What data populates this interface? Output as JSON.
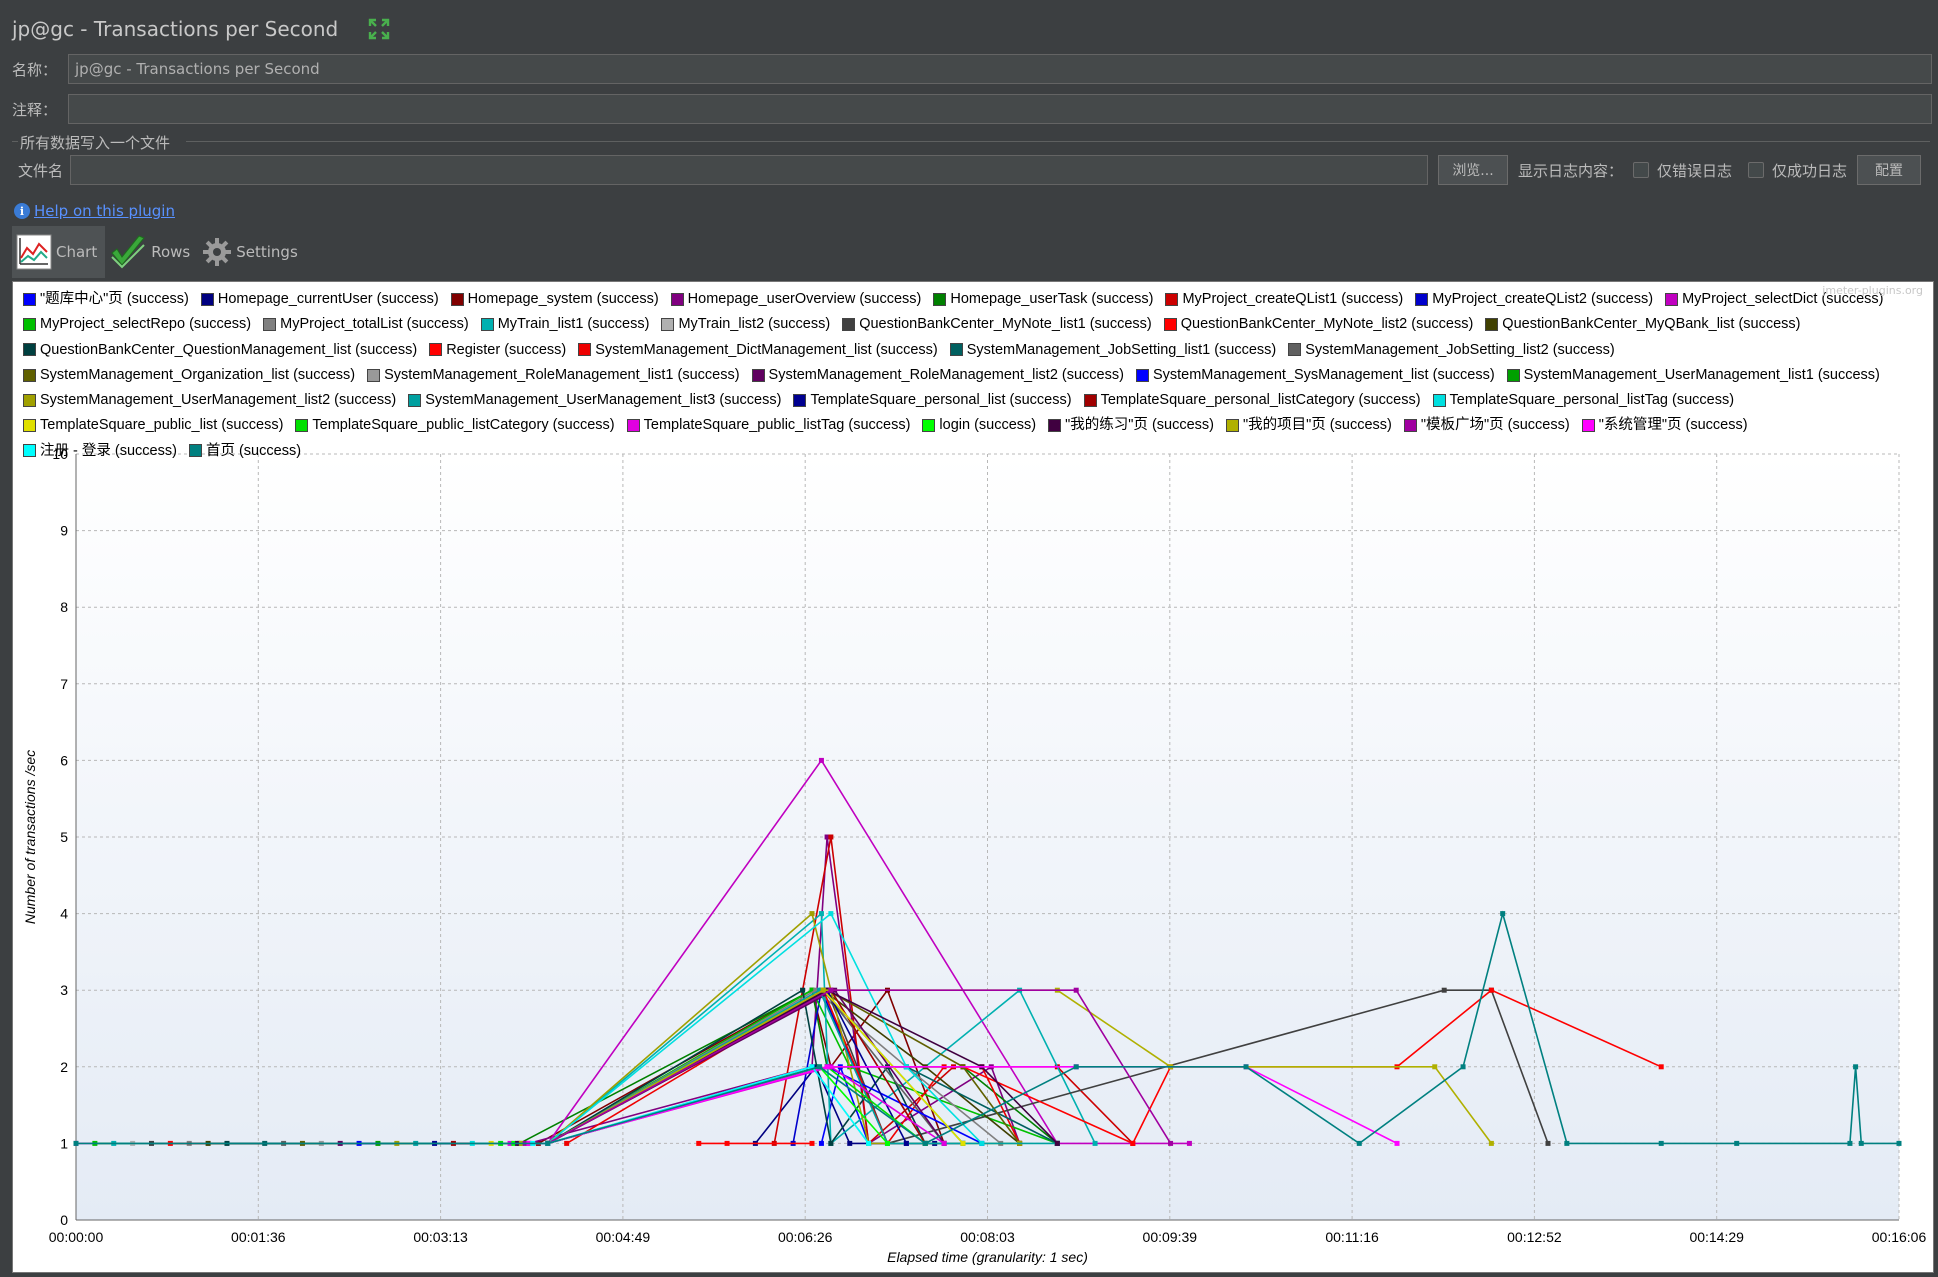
{
  "window": {
    "title": "jp@gc - Transactions per Second"
  },
  "form": {
    "name_label": "名称：",
    "name_value": "jp@gc - Transactions per Second",
    "comment_label": "注释：",
    "comment_value": "",
    "file_group_title": "所有数据写入一个文件",
    "filename_label": "文件名",
    "filename_value": "",
    "browse_button": "浏览...",
    "log_display_label": "显示日志内容：",
    "errors_only_label": "仅错误日志",
    "success_only_label": "仅成功日志",
    "configure_button": "配置"
  },
  "help_link": "Help on this plugin",
  "tabs": [
    {
      "label": "Chart"
    },
    {
      "label": "Rows"
    },
    {
      "label": "Settings"
    }
  ],
  "watermark": "jmeter-plugins.org",
  "icons": {
    "expand": "expand-icon",
    "info": "info-icon",
    "chart_tab": "line-chart-icon",
    "rows_tab": "checkmark-icon",
    "settings_tab": "gear-icon"
  },
  "chart_data": {
    "type": "line",
    "xlabel": "Elapsed time (granularity: 1 sec)",
    "ylabel": "Number of transactions /sec",
    "ylim": [
      0,
      10
    ],
    "xlim_seconds": [
      0,
      966
    ],
    "x_tick_labels": [
      "00:00:00",
      "00:01:36",
      "00:03:13",
      "00:04:49",
      "00:06:26",
      "00:08:03",
      "00:09:39",
      "00:11:16",
      "00:12:52",
      "00:14:29",
      "00:16:06"
    ],
    "y_ticks": [
      0,
      1,
      2,
      3,
      4,
      5,
      6,
      7,
      8,
      9,
      10
    ],
    "grid": true,
    "legend_position": "top",
    "series": [
      {
        "name": "\"题库中心\"页 (success)",
        "color": "#0000ff",
        "points": [
          [
            395,
            1
          ],
          [
            405,
            2
          ],
          [
            420,
            1
          ],
          [
            470,
            1
          ]
        ]
      },
      {
        "name": "Homepage_currentUser (success)",
        "color": "#000080",
        "points": [
          [
            360,
            1
          ],
          [
            392,
            2
          ],
          [
            410,
            1
          ],
          [
            440,
            1
          ],
          [
            455,
            1
          ]
        ]
      },
      {
        "name": "Homepage_system (success)",
        "color": "#800000",
        "points": [
          [
            245,
            1
          ],
          [
            390,
            3
          ],
          [
            400,
            2
          ],
          [
            430,
            3
          ],
          [
            460,
            1
          ]
        ]
      },
      {
        "name": "Homepage_userOverview (success)",
        "color": "#800080",
        "points": [
          [
            240,
            1
          ],
          [
            390,
            2
          ],
          [
            398,
            5
          ],
          [
            420,
            1
          ],
          [
            485,
            2
          ],
          [
            500,
            1
          ]
        ]
      },
      {
        "name": "Homepage_userTask (success)",
        "color": "#008000",
        "points": [
          [
            235,
            1
          ],
          [
            390,
            3
          ],
          [
            398,
            2
          ],
          [
            470,
            2
          ],
          [
            520,
            1
          ]
        ]
      },
      {
        "name": "MyProject_createQList1 (success)",
        "color": "#cc0000",
        "points": [
          [
            370,
            1
          ],
          [
            400,
            5
          ],
          [
            420,
            1
          ],
          [
            465,
            2
          ],
          [
            520,
            2
          ],
          [
            560,
            1
          ]
        ]
      },
      {
        "name": "MyProject_createQList2 (success)",
        "color": "#0000cc",
        "points": [
          [
            380,
            1
          ],
          [
            395,
            3
          ],
          [
            430,
            1
          ],
          [
            470,
            1
          ]
        ]
      },
      {
        "name": "MyProject_selectDict (success)",
        "color": "#c000c0",
        "points": [
          [
            0,
            1
          ],
          [
            250,
            1
          ],
          [
            395,
            6
          ],
          [
            520,
            1
          ],
          [
            590,
            1
          ]
        ]
      },
      {
        "name": "MyProject_selectRepo (success)",
        "color": "#00c000",
        "points": [
          [
            10,
            1
          ],
          [
            250,
            1
          ],
          [
            390,
            3
          ],
          [
            410,
            2
          ],
          [
            520,
            1
          ]
        ]
      },
      {
        "name": "MyProject_totalList (success)",
        "color": "#808080",
        "points": [
          [
            60,
            1
          ],
          [
            250,
            1
          ],
          [
            392,
            3
          ],
          [
            440,
            2
          ],
          [
            490,
            1
          ]
        ]
      },
      {
        "name": "MyTrain_list1 (success)",
        "color": "#00b0b0",
        "points": [
          [
            20,
            1
          ],
          [
            250,
            1
          ],
          [
            395,
            4
          ],
          [
            400,
            1
          ],
          [
            500,
            3
          ],
          [
            540,
            1
          ]
        ]
      },
      {
        "name": "MyTrain_list2 (success)",
        "color": "#b0b0b0",
        "points": [
          [
            30,
            1
          ],
          [
            250,
            1
          ],
          [
            390,
            2
          ],
          [
            420,
            1
          ]
        ]
      },
      {
        "name": "QuestionBankCenter_MyNote_list1 (success)",
        "color": "#404040",
        "points": [
          [
            40,
            1
          ],
          [
            250,
            1
          ],
          [
            398,
            3
          ],
          [
            430,
            1
          ],
          [
            725,
            3
          ],
          [
            750,
            3
          ],
          [
            780,
            1
          ]
        ]
      },
      {
        "name": "QuestionBankCenter_MyNote_list2 (success)",
        "color": "#ff0000",
        "points": [
          [
            50,
            1
          ],
          [
            250,
            1
          ],
          [
            398,
            2
          ],
          [
            470,
            2
          ],
          [
            560,
            1
          ],
          [
            580,
            2
          ],
          [
            700,
            2
          ],
          [
            750,
            3
          ],
          [
            840,
            2
          ]
        ]
      },
      {
        "name": "QuestionBankCenter_MyQBank_list (success)",
        "color": "#404000",
        "points": [
          [
            70,
            1
          ],
          [
            250,
            1
          ],
          [
            396,
            3
          ],
          [
            450,
            2
          ],
          [
            500,
            1
          ]
        ]
      },
      {
        "name": "QuestionBankCenter_QuestionManagement_list (success)",
        "color": "#004040",
        "points": [
          [
            80,
            1
          ],
          [
            250,
            1
          ],
          [
            385,
            3
          ],
          [
            400,
            1
          ],
          [
            430,
            2
          ],
          [
            450,
            1
          ]
        ]
      },
      {
        "name": "Register (success)",
        "color": "#ff0000",
        "points": [
          [
            330,
            1
          ],
          [
            345,
            1
          ],
          [
            390,
            1
          ]
        ]
      },
      {
        "name": "SystemManagement_DictManagement_list (success)",
        "color": "#ee0000",
        "points": [
          [
            260,
            1
          ],
          [
            396,
            3
          ],
          [
            430,
            1
          ],
          [
            460,
            2
          ],
          [
            480,
            2
          ],
          [
            500,
            1
          ]
        ]
      },
      {
        "name": "SystemManagement_JobSetting_list1 (success)",
        "color": "#006060",
        "points": [
          [
            100,
            1
          ],
          [
            250,
            1
          ],
          [
            398,
            2
          ],
          [
            440,
            2
          ],
          [
            520,
            1
          ]
        ]
      },
      {
        "name": "SystemManagement_JobSetting_list2 (success)",
        "color": "#606060",
        "points": [
          [
            110,
            1
          ],
          [
            250,
            1
          ],
          [
            396,
            3
          ],
          [
            460,
            1
          ]
        ]
      },
      {
        "name": "SystemManagement_Organization_list (success)",
        "color": "#606000",
        "points": [
          [
            120,
            1
          ],
          [
            250,
            1
          ],
          [
            398,
            3
          ],
          [
            470,
            2
          ],
          [
            500,
            1
          ]
        ]
      },
      {
        "name": "SystemManagement_RoleManagement_list1 (success)",
        "color": "#999999",
        "points": [
          [
            130,
            1
          ],
          [
            250,
            1
          ],
          [
            400,
            3
          ],
          [
            450,
            1
          ]
        ]
      },
      {
        "name": "SystemManagement_RoleManagement_list2 (success)",
        "color": "#600060",
        "points": [
          [
            140,
            1
          ],
          [
            250,
            1
          ],
          [
            402,
            3
          ],
          [
            460,
            1
          ]
        ]
      },
      {
        "name": "SystemManagement_SysManagement_list (success)",
        "color": "#0000ff",
        "points": [
          [
            150,
            1
          ],
          [
            250,
            1
          ],
          [
            398,
            2
          ],
          [
            480,
            1
          ]
        ]
      },
      {
        "name": "SystemManagement_UserManagement_list1 (success)",
        "color": "#00a000",
        "points": [
          [
            160,
            1
          ],
          [
            250,
            1
          ],
          [
            396,
            3
          ],
          [
            470,
            1
          ]
        ]
      },
      {
        "name": "SystemManagement_UserManagement_list2 (success)",
        "color": "#a0a000",
        "points": [
          [
            170,
            1
          ],
          [
            250,
            1
          ],
          [
            390,
            4
          ],
          [
            420,
            1
          ],
          [
            500,
            1
          ]
        ]
      },
      {
        "name": "SystemManagement_UserManagement_list3 (success)",
        "color": "#00a0a0",
        "points": [
          [
            180,
            1
          ],
          [
            250,
            1
          ],
          [
            394,
            3
          ],
          [
            430,
            1
          ],
          [
            520,
            1
          ]
        ]
      },
      {
        "name": "TemplateSquare_personal_list (success)",
        "color": "#000090",
        "points": [
          [
            190,
            1
          ],
          [
            250,
            1
          ],
          [
            398,
            3
          ],
          [
            440,
            1
          ]
        ]
      },
      {
        "name": "TemplateSquare_personal_listCategory (success)",
        "color": "#a00000",
        "points": [
          [
            200,
            1
          ],
          [
            250,
            1
          ],
          [
            400,
            3
          ],
          [
            450,
            1
          ]
        ]
      },
      {
        "name": "TemplateSquare_personal_listTag (success)",
        "color": "#00e0e0",
        "points": [
          [
            210,
            1
          ],
          [
            250,
            1
          ],
          [
            400,
            4
          ],
          [
            440,
            2
          ],
          [
            480,
            1
          ]
        ]
      },
      {
        "name": "TemplateSquare_public_list (success)",
        "color": "#e0e000",
        "points": [
          [
            220,
            1
          ],
          [
            250,
            1
          ],
          [
            396,
            3
          ],
          [
            470,
            1
          ]
        ]
      },
      {
        "name": "TemplateSquare_public_listCategory (success)",
        "color": "#00e000",
        "points": [
          [
            225,
            1
          ],
          [
            250,
            1
          ],
          [
            398,
            2
          ],
          [
            450,
            1
          ]
        ]
      },
      {
        "name": "TemplateSquare_public_listTag (success)",
        "color": "#e000e0",
        "points": [
          [
            230,
            1
          ],
          [
            250,
            1
          ],
          [
            400,
            2
          ],
          [
            460,
            1
          ]
        ]
      },
      {
        "name": "login (success)",
        "color": "#00ff00",
        "points": [
          [
            232,
            1
          ],
          [
            250,
            1
          ],
          [
            394,
            2
          ],
          [
            430,
            1
          ]
        ]
      },
      {
        "name": "\"我的练习\"页 (success)",
        "color": "#400040",
        "points": [
          [
            234,
            1
          ],
          [
            250,
            1
          ],
          [
            398,
            3
          ],
          [
            480,
            2
          ],
          [
            520,
            1
          ]
        ]
      },
      {
        "name": "\"我的项目\"页 (success)",
        "color": "#b0b000",
        "points": [
          [
            236,
            1
          ],
          [
            250,
            1
          ],
          [
            396,
            3
          ],
          [
            520,
            3
          ],
          [
            580,
            2
          ],
          [
            720,
            2
          ],
          [
            750,
            1
          ]
        ]
      },
      {
        "name": "\"模板广场\"页 (success)",
        "color": "#a000a0",
        "points": [
          [
            238,
            1
          ],
          [
            250,
            1
          ],
          [
            400,
            3
          ],
          [
            530,
            3
          ],
          [
            580,
            1
          ]
        ]
      },
      {
        "name": "\"系统管理\"页 (success)",
        "color": "#ff00ff",
        "points": [
          [
            240,
            1
          ],
          [
            250,
            1
          ],
          [
            398,
            2
          ],
          [
            530,
            2
          ],
          [
            620,
            2
          ],
          [
            700,
            1
          ]
        ]
      },
      {
        "name": "注册 - 登录  (success)",
        "color": "#00ffff",
        "points": [
          [
            242,
            1
          ],
          [
            250,
            1
          ],
          [
            390,
            2
          ],
          [
            420,
            1
          ]
        ]
      },
      {
        "name": "首页 (success)",
        "color": "#008080",
        "points": [
          [
            0,
            1
          ],
          [
            250,
            1
          ],
          [
            394,
            2
          ],
          [
            450,
            1
          ],
          [
            530,
            2
          ],
          [
            620,
            2
          ],
          [
            680,
            1
          ],
          [
            735,
            2
          ],
          [
            756,
            4
          ],
          [
            790,
            1
          ],
          [
            840,
            1
          ],
          [
            880,
            1
          ],
          [
            940,
            1
          ],
          [
            943,
            2
          ],
          [
            946,
            1
          ],
          [
            966,
            1
          ]
        ]
      }
    ]
  }
}
